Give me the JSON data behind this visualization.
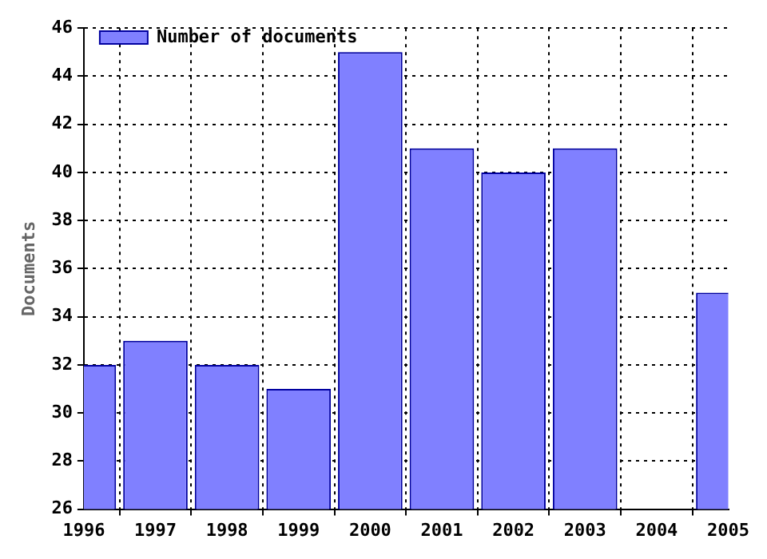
{
  "chart_data": {
    "type": "bar",
    "ylabel": "Documents",
    "x": [
      1996,
      1997,
      1998,
      1999,
      2000,
      2001,
      2002,
      2003,
      2004,
      2005
    ],
    "series": [
      {
        "name": "Number of documents",
        "color": "#8080ff",
        "values": [
          32,
          33,
          32,
          31,
          45,
          41,
          40,
          41,
          null,
          35
        ]
      }
    ],
    "xlim": [
      1996,
      2005
    ],
    "xticks": [
      1996,
      1997,
      1998,
      1999,
      2000,
      2001,
      2002,
      2003,
      2004,
      2005
    ],
    "ylim": [
      26,
      46
    ],
    "yticks": [
      26,
      28,
      30,
      32,
      34,
      36,
      38,
      40,
      42,
      44,
      46
    ],
    "grid": true,
    "legend": "top left"
  }
}
